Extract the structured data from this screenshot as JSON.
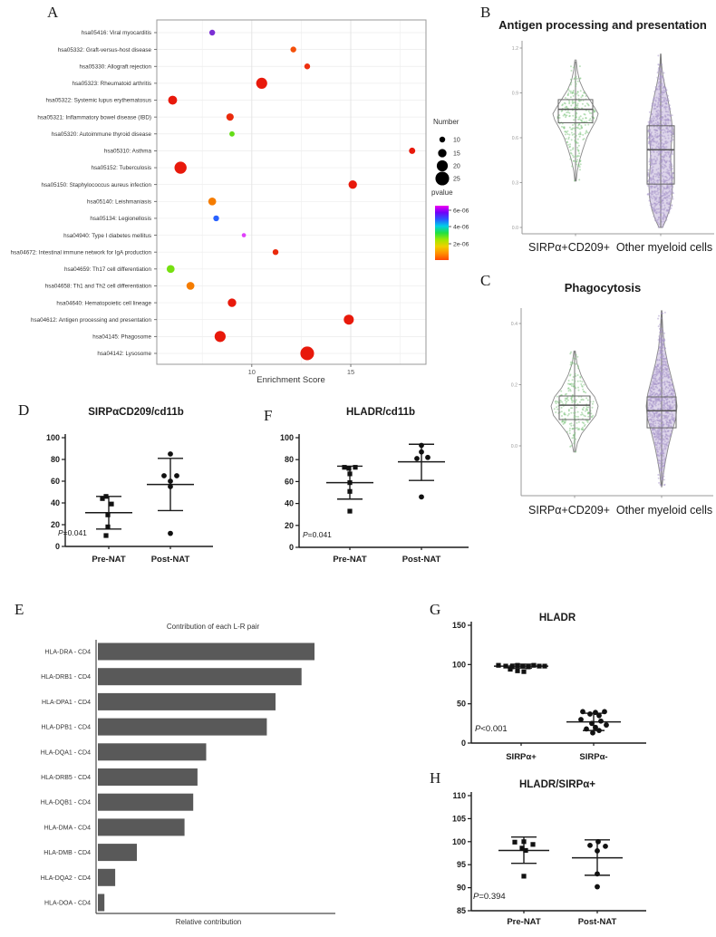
{
  "figure": {
    "background": "#ffffff"
  },
  "chart_data": [
    {
      "panel": "A",
      "type": "scatter",
      "title": "",
      "xlabel": "Enrichment Score",
      "xticks": [
        10,
        15
      ],
      "xlim": [
        5.2,
        18.8
      ],
      "size_legend": {
        "title": "Number",
        "values": [
          10,
          15,
          20,
          25
        ]
      },
      "color_legend": {
        "title": "pvalue",
        "ticks": [
          "6e-06",
          "4e-06",
          "2e-06"
        ],
        "gradient": [
          "#f200f2",
          "#7000f8",
          "#2858ff",
          "#00d0e8",
          "#20e040",
          "#a0e800",
          "#f0d000",
          "#ff9000",
          "#ff4800"
        ]
      },
      "points": [
        {
          "pathway": "hsa05416: Viral myocarditis",
          "score": 8.0,
          "number": 10,
          "color": "#7b2fd4"
        },
        {
          "pathway": "hsa05332: Graft-versus-host disease",
          "score": 12.1,
          "number": 10,
          "color": "#f4500a"
        },
        {
          "pathway": "hsa05330: Allograft rejection",
          "score": 12.8,
          "number": 10,
          "color": "#ee2f10"
        },
        {
          "pathway": "hsa05323: Rheumatoid arthritis",
          "score": 10.5,
          "number": 20,
          "color": "#e8190b"
        },
        {
          "pathway": "hsa05322: Systemic lupus erythematosus",
          "score": 6.0,
          "number": 16,
          "color": "#e8190b"
        },
        {
          "pathway": "hsa05321: Inflammatory bowel disease (IBD)",
          "score": 8.9,
          "number": 13,
          "color": "#ea2a0c"
        },
        {
          "pathway": "hsa05320: Autoimmune thyroid disease",
          "score": 9.0,
          "number": 9,
          "color": "#64dd17"
        },
        {
          "pathway": "hsa05310: Asthma",
          "score": 18.1,
          "number": 11,
          "color": "#e8190b"
        },
        {
          "pathway": "hsa05152: Tuberculosis",
          "score": 6.4,
          "number": 22,
          "color": "#e8190b"
        },
        {
          "pathway": "hsa05150: Staphylococcus aureus infection",
          "score": 15.1,
          "number": 15,
          "color": "#e8190b"
        },
        {
          "pathway": "hsa05140: Leishmaniasis",
          "score": 8.0,
          "number": 14,
          "color": "#f57c00"
        },
        {
          "pathway": "hsa05134: Legionellosis",
          "score": 8.2,
          "number": 10,
          "color": "#2962ff"
        },
        {
          "pathway": "hsa04940: Type I diabetes mellitus",
          "score": 9.6,
          "number": 7,
          "color": "#e040fb"
        },
        {
          "pathway": "hsa04672: Intestinal immune network for IgA production",
          "score": 11.2,
          "number": 10,
          "color": "#ea2a0c"
        },
        {
          "pathway": "hsa04659: Th17 cell differentiation",
          "score": 5.9,
          "number": 14,
          "color": "#76e010"
        },
        {
          "pathway": "hsa04658: Th1 and Th2 cell differentiation",
          "score": 6.9,
          "number": 14,
          "color": "#f57c00"
        },
        {
          "pathway": "hsa04640: Hematopoietic cell lineage",
          "score": 9.0,
          "number": 15,
          "color": "#e8190b"
        },
        {
          "pathway": "hsa04612: Antigen processing and presentation",
          "score": 14.9,
          "number": 18,
          "color": "#e8190b"
        },
        {
          "pathway": "hsa04145: Phagosome",
          "score": 8.4,
          "number": 20,
          "color": "#e8190b"
        },
        {
          "pathway": "hsa04142: Lysosome",
          "score": 12.8,
          "number": 25,
          "color": "#e8190b"
        }
      ]
    },
    {
      "panel": "B",
      "type": "violin",
      "title": "Antigen processing and presentation",
      "yticks": [
        0.0,
        0.3,
        0.6,
        0.9,
        1.2
      ],
      "ylim": [
        0,
        1.25
      ],
      "groups": [
        {
          "name": "SIRPα+CD209+",
          "point_color": "#7cc47c",
          "fill": "none",
          "median": 0.79,
          "q1": 0.7,
          "q3": 0.855,
          "whisker_low": 0.31,
          "whisker_high": 1.11,
          "n_points": 260,
          "profile": [
            [
              1.12,
              0.03
            ],
            [
              1.05,
              0.08
            ],
            [
              0.98,
              0.18
            ],
            [
              0.92,
              0.35
            ],
            [
              0.86,
              0.6
            ],
            [
              0.8,
              0.85
            ],
            [
              0.76,
              1.0
            ],
            [
              0.72,
              0.92
            ],
            [
              0.66,
              0.7
            ],
            [
              0.6,
              0.5
            ],
            [
              0.52,
              0.32
            ],
            [
              0.45,
              0.18
            ],
            [
              0.38,
              0.08
            ],
            [
              0.31,
              0.03
            ]
          ]
        },
        {
          "name": "Other myeloid cells",
          "point_color": "#a795c9",
          "fill": "rgba(198,185,220,0.6)",
          "median": 0.52,
          "q1": 0.29,
          "q3": 0.68,
          "whisker_low": 0.0,
          "whisker_high": 1.16,
          "n_points": 850,
          "profile": [
            [
              1.16,
              0.02
            ],
            [
              1.1,
              0.06
            ],
            [
              1.02,
              0.18
            ],
            [
              0.95,
              0.35
            ],
            [
              0.88,
              0.55
            ],
            [
              0.8,
              0.75
            ],
            [
              0.72,
              0.92
            ],
            [
              0.65,
              1.0
            ],
            [
              0.55,
              0.9
            ],
            [
              0.45,
              0.85
            ],
            [
              0.35,
              0.95
            ],
            [
              0.28,
              1.0
            ],
            [
              0.2,
              0.95
            ],
            [
              0.12,
              0.75
            ],
            [
              0.05,
              0.45
            ],
            [
              0.0,
              0.15
            ]
          ]
        }
      ]
    },
    {
      "panel": "C",
      "type": "violin",
      "title": "Phagocytosis",
      "yticks": [
        0.0,
        0.2,
        0.4
      ],
      "ylim": [
        -0.15,
        0.46
      ],
      "groups": [
        {
          "name": "SIRPα+CD209+",
          "point_color": "#7cc47c",
          "fill": "none",
          "median": 0.133,
          "q1": 0.086,
          "q3": 0.163,
          "whisker_low": -0.018,
          "whisker_high": 0.308,
          "n_points": 230,
          "profile": [
            [
              0.31,
              0.03
            ],
            [
              0.27,
              0.1
            ],
            [
              0.23,
              0.28
            ],
            [
              0.19,
              0.55
            ],
            [
              0.16,
              0.85
            ],
            [
              0.13,
              1.0
            ],
            [
              0.1,
              0.9
            ],
            [
              0.07,
              0.6
            ],
            [
              0.04,
              0.3
            ],
            [
              0.01,
              0.12
            ],
            [
              -0.02,
              0.04
            ]
          ]
        },
        {
          "name": "Other myeloid cells",
          "point_color": "#a795c9",
          "fill": "rgba(198,185,220,0.6)",
          "median": 0.115,
          "q1": 0.059,
          "q3": 0.16,
          "whisker_low": -0.136,
          "whisker_high": 0.444,
          "n_points": 800,
          "profile": [
            [
              0.44,
              0.02
            ],
            [
              0.38,
              0.08
            ],
            [
              0.32,
              0.2
            ],
            [
              0.27,
              0.4
            ],
            [
              0.22,
              0.65
            ],
            [
              0.17,
              0.9
            ],
            [
              0.13,
              1.0
            ],
            [
              0.09,
              0.92
            ],
            [
              0.05,
              0.7
            ],
            [
              0.0,
              0.45
            ],
            [
              -0.05,
              0.25
            ],
            [
              -0.09,
              0.12
            ],
            [
              -0.13,
              0.04
            ]
          ]
        }
      ]
    },
    {
      "panel": "D",
      "type": "scatter",
      "title": "SIRPαCD209/cd11b",
      "yticks": [
        0,
        20,
        40,
        60,
        80,
        100
      ],
      "ylim": [
        0,
        100
      ],
      "p_prefix": "P",
      "p_rest": "=0.041",
      "groups": [
        {
          "name": "Pre-NAT",
          "marker": "square",
          "mean": 31,
          "sd_low": 16,
          "sd_high": 46,
          "points": [
            [
              46,
              -3
            ],
            [
              44,
              -7
            ],
            [
              39,
              3
            ],
            [
              29,
              -1
            ],
            [
              18,
              -1
            ],
            [
              10,
              -3
            ]
          ]
        },
        {
          "name": "Post-NAT",
          "marker": "circle",
          "mean": 57,
          "sd_low": 33,
          "sd_high": 81,
          "points": [
            [
              85,
              0
            ],
            [
              65,
              -7
            ],
            [
              65,
              7
            ],
            [
              60,
              0
            ],
            [
              55,
              0
            ],
            [
              12,
              0
            ]
          ]
        }
      ]
    },
    {
      "panel": "F",
      "type": "scatter",
      "title": "HLADR/cd11b",
      "yticks": [
        0,
        20,
        40,
        60,
        80,
        100
      ],
      "ylim": [
        0,
        100
      ],
      "p_prefix": "P",
      "p_rest": "=0.041",
      "groups": [
        {
          "name": "Pre-NAT",
          "marker": "square",
          "mean": 59,
          "sd_low": 44,
          "sd_high": 74,
          "points": [
            [
              73,
              -6
            ],
            [
              73,
              6
            ],
            [
              72,
              -1
            ],
            [
              67,
              0
            ],
            [
              59,
              0
            ],
            [
              51,
              0
            ],
            [
              33,
              0
            ]
          ]
        },
        {
          "name": "Post-NAT",
          "marker": "circle",
          "mean": 78,
          "sd_low": 61,
          "sd_high": 94,
          "points": [
            [
              93,
              0
            ],
            [
              87,
              0
            ],
            [
              82,
              7
            ],
            [
              81,
              -5
            ],
            [
              46,
              0
            ]
          ]
        }
      ]
    },
    {
      "panel": "E",
      "type": "bar",
      "title": "Contribution of each L-R pair",
      "xlabel": "Relative contribution",
      "bar_color": "#595959",
      "categories": [
        "HLA-DRA - CD4",
        "HLA-DRB1 - CD4",
        "HLA-DPA1 - CD4",
        "HLA-DPB1 - CD4",
        "HLA-DQA1 - CD4",
        "HLA-DRB5 - CD4",
        "HLA-DQB1 - CD4",
        "HLA-DMA - CD4",
        "HLA-DMB - CD4",
        "HLA-DQA2 - CD4",
        "HLA-DOA - CD4"
      ],
      "values": [
        1.0,
        0.94,
        0.82,
        0.78,
        0.5,
        0.46,
        0.44,
        0.4,
        0.18,
        0.08,
        0.03
      ]
    },
    {
      "panel": "G",
      "type": "scatter",
      "title": "HLADR",
      "yticks": [
        0,
        50,
        100,
        150
      ],
      "ylim": [
        0,
        150
      ],
      "p_prefix": "P",
      "p_rest": "<0.001",
      "groups": [
        {
          "name": "SIRPα+",
          "marker": "square",
          "mean": 98,
          "sd_low": 95.5,
          "sd_high": 100.5,
          "points": [
            [
              99,
              -25
            ],
            [
              98,
              -17
            ],
            [
              97,
              -10
            ],
            [
              99,
              -4
            ],
            [
              98,
              2
            ],
            [
              97,
              8
            ],
            [
              99,
              14
            ],
            [
              98,
              20
            ],
            [
              98,
              26
            ],
            [
              94,
              -12
            ],
            [
              92,
              -4
            ],
            [
              91,
              3
            ]
          ]
        },
        {
          "name": "SIRPα-",
          "marker": "circle",
          "mean": 27,
          "sd_low": 16,
          "sd_high": 38,
          "points": [
            [
              40,
              -12
            ],
            [
              39,
              2
            ],
            [
              40,
              12
            ],
            [
              37,
              -4
            ],
            [
              35,
              6
            ],
            [
              30,
              -14
            ],
            [
              28,
              8
            ],
            [
              25,
              -2
            ],
            [
              23,
              14
            ],
            [
              20,
              2
            ],
            [
              18,
              -8
            ],
            [
              16,
              6
            ],
            [
              13,
              -1
            ]
          ]
        }
      ]
    },
    {
      "panel": "H",
      "type": "scatter",
      "title": "HLADR/SIRPα+",
      "yticks": [
        85,
        90,
        95,
        100,
        105,
        110
      ],
      "ylim": [
        85,
        110
      ],
      "p_prefix": "P",
      "p_rest": "=0.394",
      "groups": [
        {
          "name": "Pre-NAT",
          "marker": "square",
          "mean": 98.1,
          "sd_low": 95.3,
          "sd_high": 101.0,
          "points": [
            [
              99.9,
              -10
            ],
            [
              100,
              0
            ],
            [
              99.4,
              10
            ],
            [
              98.6,
              -2
            ],
            [
              98.1,
              2
            ],
            [
              92.5,
              0
            ]
          ]
        },
        {
          "name": "Post-NAT",
          "marker": "circle",
          "mean": 96.5,
          "sd_low": 92.7,
          "sd_high": 100.4,
          "points": [
            [
              100,
              1
            ],
            [
              99.2,
              -8
            ],
            [
              99,
              9
            ],
            [
              98,
              0
            ],
            [
              93,
              0
            ],
            [
              90.2,
              0
            ]
          ]
        }
      ]
    }
  ]
}
